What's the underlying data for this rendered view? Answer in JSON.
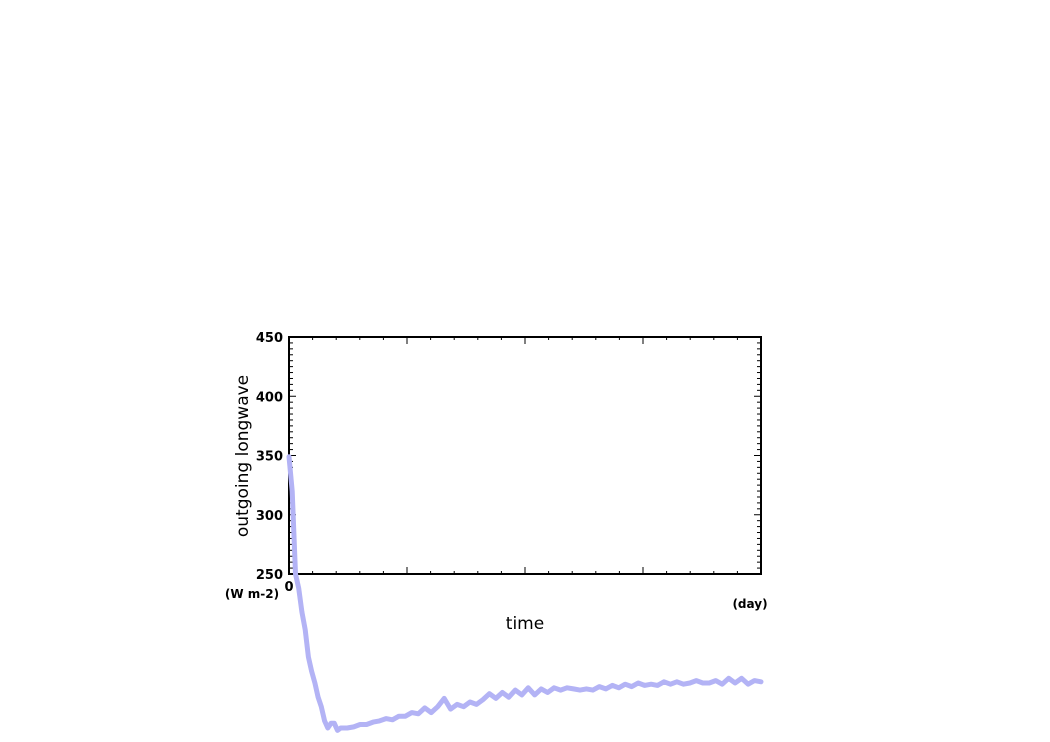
{
  "chart_data": {
    "type": "line",
    "title": "",
    "xlabel": "time",
    "ylabel": "outgoing longwave",
    "x_unit": "(day)",
    "y_unit": "(W m-2)",
    "xlim": [
      0,
      730
    ],
    "ylim": [
      250,
      450
    ],
    "x_tick_labels": [
      {
        "value": 0,
        "label": "0"
      }
    ],
    "y_ticks": [
      250,
      300,
      350,
      400,
      450
    ],
    "grid": false,
    "series_color": "#b3b3f5",
    "series": [
      {
        "x": [
          0,
          5,
          10,
          15,
          20,
          25,
          30,
          35,
          40,
          45,
          50,
          55,
          60,
          65,
          70,
          75,
          80,
          90,
          100,
          110,
          120,
          130,
          140,
          150,
          160,
          170,
          180,
          190,
          200,
          210,
          220,
          230,
          240,
          250,
          260,
          270,
          280,
          290,
          300,
          310,
          320,
          330,
          340,
          350,
          360,
          370,
          380,
          390,
          400,
          410,
          420,
          430,
          440,
          450,
          460,
          470,
          480,
          490,
          500,
          510,
          520,
          530,
          540,
          550,
          560,
          570,
          580,
          590,
          600,
          610,
          620,
          630,
          640,
          650,
          660,
          670,
          680,
          690,
          700,
          710,
          720,
          730
        ],
        "values": [
          349,
          320,
          250,
          238,
          218,
          203,
          180,
          168,
          158,
          146,
          138,
          126,
          120,
          124,
          124,
          118,
          120,
          120,
          121,
          123,
          123,
          125,
          126,
          128,
          127,
          130,
          130,
          133,
          132,
          137,
          133,
          138,
          145,
          136,
          140,
          138,
          142,
          140,
          144,
          149,
          145,
          150,
          146,
          152,
          148,
          154,
          148,
          153,
          150,
          154,
          152,
          154,
          153,
          152,
          153,
          152,
          155,
          153,
          156,
          154,
          157,
          155,
          158,
          156,
          157,
          156,
          159,
          157,
          159,
          157,
          158,
          160,
          158,
          158,
          160,
          157,
          162,
          158,
          162,
          157,
          160,
          159
        ]
      }
    ]
  }
}
